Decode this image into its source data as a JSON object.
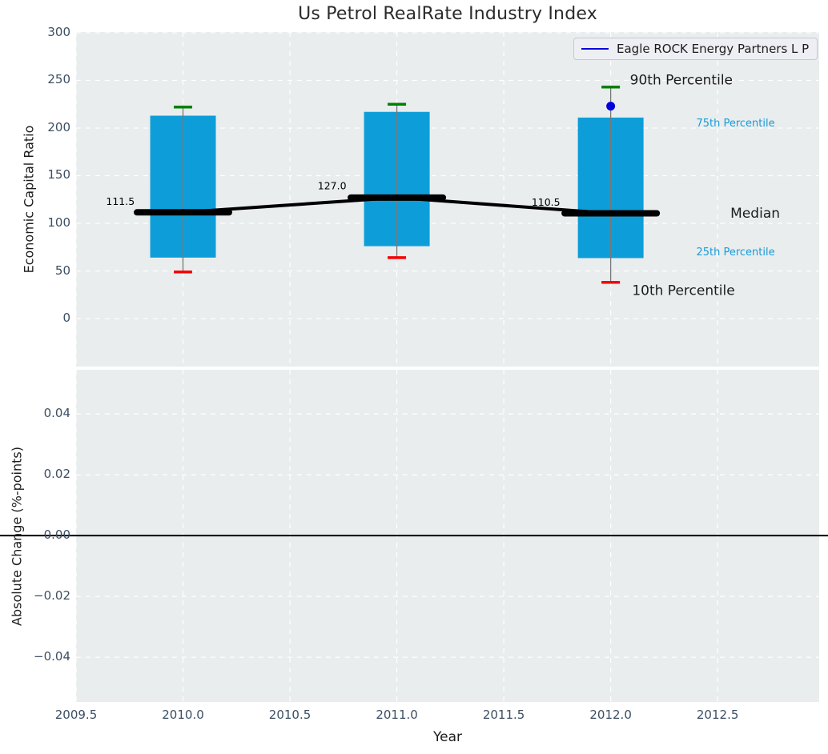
{
  "title": "Us Petrol RealRate Industry Index",
  "xlabel": "Year",
  "legend": {
    "label": "Eagle ROCK Energy Partners L P"
  },
  "colors": {
    "axes_bg": "#e9edee",
    "grid": "#ffffff",
    "box_fill": "#0d9ed9",
    "whisker": "#787878",
    "p90_cap": "#008000",
    "p10_cap": "#f40000",
    "median_line": "#000000",
    "series_blue": "#0000dd",
    "tick_label": "#3d4f63",
    "text_dark": "#1c1c1c",
    "percentile_blue": "#189bd8",
    "zero_line": "#000000"
  },
  "xticks": [
    2009.5,
    2010.0,
    2010.5,
    2011.0,
    2011.5,
    2012.0,
    2012.5
  ],
  "chart_data": [
    {
      "type": "box",
      "title": "Us Petrol RealRate Industry Index",
      "ylabel": "Economic Capital Ratio",
      "xlabel": "Year",
      "ylim": [
        -50.4,
        300.8
      ],
      "xlim": [
        2009.5,
        2012.975
      ],
      "yticks": [
        0,
        50,
        100,
        150,
        200,
        250,
        300
      ],
      "grid": "dashed-white",
      "legend_position": "upper-right",
      "boxes": [
        {
          "year": 2010,
          "p10": 49,
          "p25": 64,
          "median": 111.5,
          "p75": 213,
          "p90": 222
        },
        {
          "year": 2011,
          "p10": 64,
          "p25": 76,
          "median": 127.0,
          "p75": 217,
          "p90": 225
        },
        {
          "year": 2012,
          "p10": 38,
          "p25": 63.5,
          "median": 110.5,
          "p75": 211,
          "p90": 243
        }
      ],
      "median_labels": [
        {
          "text": "111.5",
          "x": 2009.64,
          "y": 122.5
        },
        {
          "text": "127.0",
          "x": 2010.63,
          "y": 139.0
        },
        {
          "text": "110.5",
          "x": 2011.63,
          "y": 122.0
        }
      ],
      "series": [
        {
          "name": "Eagle ROCK Energy Partners L P",
          "marker": "circle",
          "points": [
            {
              "x": 2012,
              "y": 223
            }
          ]
        }
      ],
      "annotations": [
        {
          "text": "90th Percentile",
          "x": 2012.09,
          "y": 251.0,
          "size": 17,
          "color": "dark"
        },
        {
          "text": "75th Percentile",
          "x": 2012.4,
          "y": 205.5,
          "size": 13,
          "color": "blue"
        },
        {
          "text": "Median",
          "x": 2012.56,
          "y": 111.0,
          "size": 17,
          "color": "dark"
        },
        {
          "text": "25th Percentile",
          "x": 2012.4,
          "y": 70.5,
          "size": 13,
          "color": "blue"
        },
        {
          "text": "10th Percentile",
          "x": 2012.1,
          "y": 30.0,
          "size": 17,
          "color": "dark"
        }
      ]
    },
    {
      "type": "line",
      "ylabel": "Absolute Change (%-points)",
      "ylim": [
        -0.0547,
        0.0545
      ],
      "xlim": [
        2009.5,
        2012.975
      ],
      "yticks": [
        0.04,
        0.02,
        0.0,
        -0.02,
        -0.04
      ],
      "grid": "dashed-white",
      "zero_line": 0.0,
      "series": []
    }
  ]
}
